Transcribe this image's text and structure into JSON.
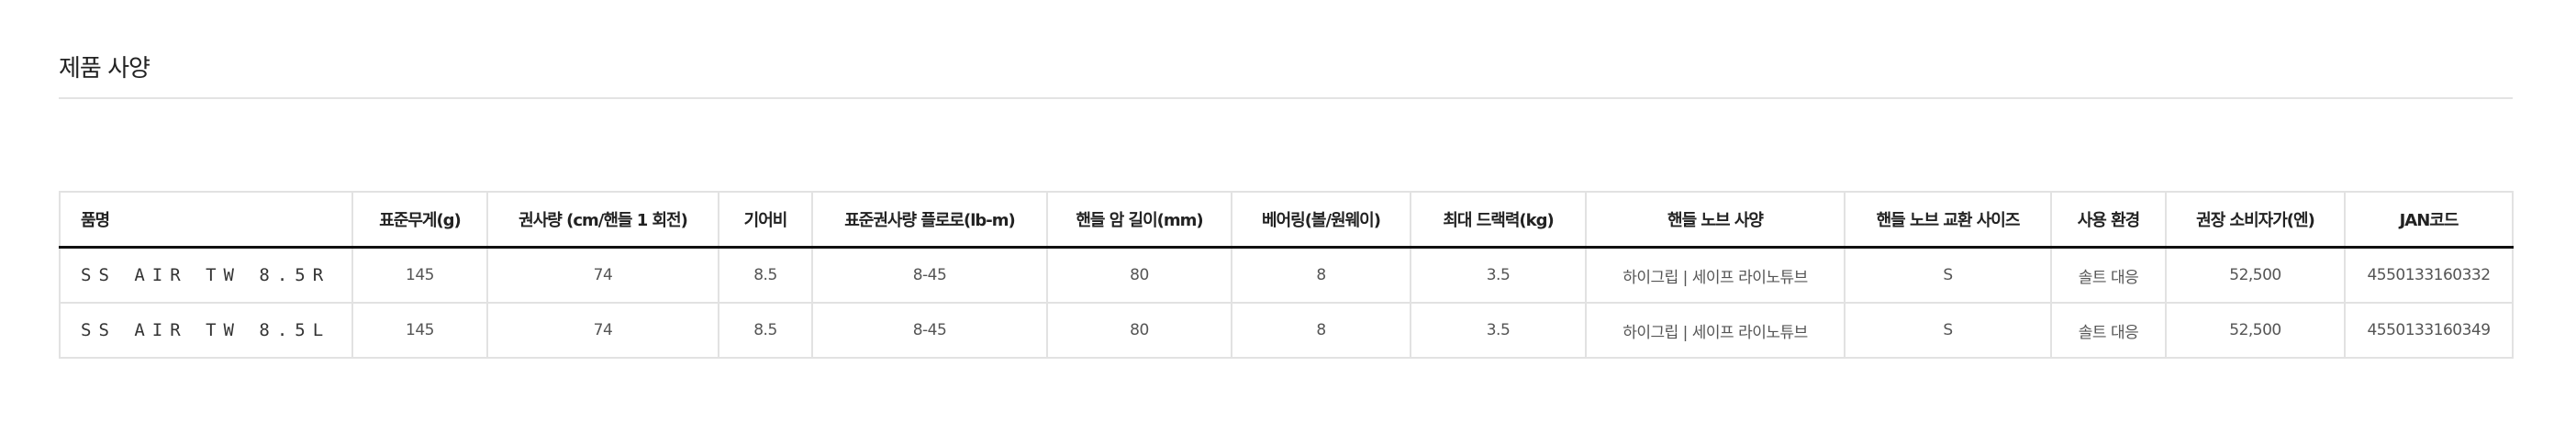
{
  "title": "제품 사양",
  "table": {
    "headers": [
      "품명",
      "표준무게(g)",
      "권사량 (cm/핸들 1 회전)",
      "기어비",
      "표준권사량 플로로(lb-m)",
      "핸들 암 길이(mm)",
      "베어링(볼/원웨이)",
      "최대 드랙력(kg)",
      "핸들 노브 사양",
      "핸들 노브 교환 사이즈",
      "사용 환경",
      "권장 소비자가(엔)",
      "JAN코드"
    ],
    "rows": [
      [
        "SS AIR TW 8.5R",
        "145",
        "74",
        "8.5",
        "8-45",
        "80",
        "8",
        "3.5",
        "하이그립 | 세이프 라이노튜브",
        "S",
        "솔트 대응",
        "52,500",
        "4550133160332"
      ],
      [
        "SS AIR TW 8.5L",
        "145",
        "74",
        "8.5",
        "8-45",
        "80",
        "8",
        "3.5",
        "하이그립 | 세이프 라이노튜브",
        "S",
        "솔트 대응",
        "52,500",
        "4550133160349"
      ]
    ]
  }
}
